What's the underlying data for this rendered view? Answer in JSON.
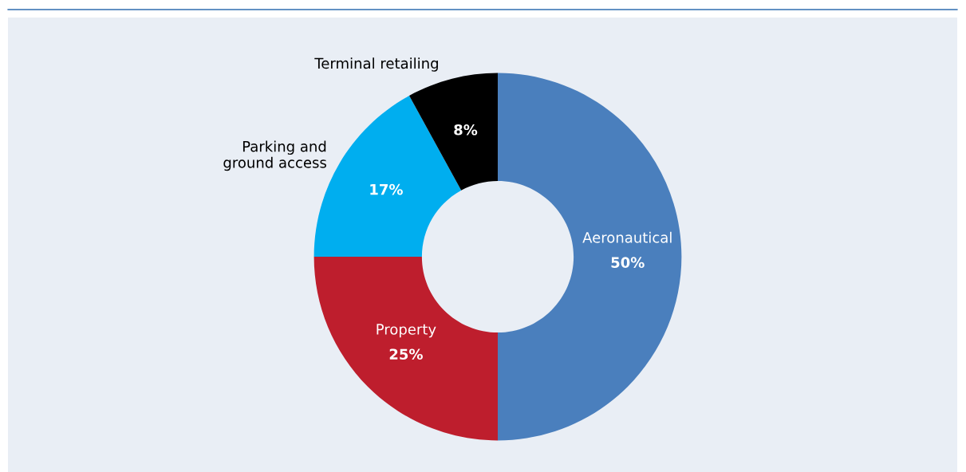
{
  "chart_data": {
    "type": "donut",
    "categories": [
      "Aeronautical",
      "Property",
      "Parking and\nground access",
      "Terminal retailing"
    ],
    "values": [
      50,
      25,
      17,
      8
    ],
    "colors": [
      "#4a7fbd",
      "#be1e2d",
      "#00aeef",
      "#000000"
    ],
    "value_labels": [
      "50%",
      "25%",
      "17%",
      "8%"
    ],
    "legend": false
  }
}
